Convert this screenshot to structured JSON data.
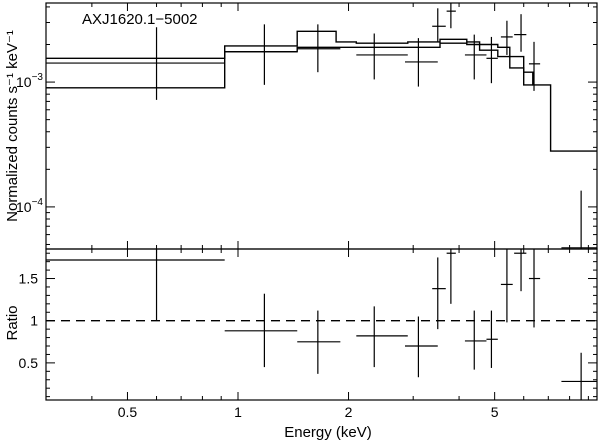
{
  "chart_data": [
    {
      "type": "line",
      "panel": "spectrum",
      "annotation": "AXJ1620.1−5002",
      "ylabel": "Normalized counts s⁻¹ keV⁻¹",
      "xscale": "log",
      "yscale": "log",
      "xlim": [
        0.3,
        9.5
      ],
      "ylim": [
        4.6e-05,
        0.0043
      ],
      "ytick_labels": [
        {
          "value": 0.001,
          "mantissa": "10",
          "exp": "−3"
        },
        {
          "value": 0.0001,
          "mantissa": "10",
          "exp": "−4"
        }
      ],
      "series": [
        {
          "style": "upper step line",
          "edges": [
            0.3,
            0.92,
            1.45,
            1.85,
            2.1,
            2.9,
            3.55,
            4.2,
            4.55,
            5.1,
            5.5,
            6.0,
            6.35,
            7.1,
            9.5
          ],
          "values": [
            0.00155,
            0.00195,
            0.00255,
            0.0021,
            0.00205,
            0.0021,
            0.0022,
            0.0021,
            0.002,
            0.0019,
            0.0016,
            0.0012,
            0.00095,
            0.00028
          ]
        },
        {
          "style": "lower step line",
          "edges": [
            0.3,
            0.92,
            1.45,
            2.1,
            2.9,
            3.55,
            4.2,
            4.55,
            5.1,
            5.5,
            6.0,
            6.35
          ],
          "values": [
            0.0009,
            0.00175,
            0.0019,
            0.0019,
            0.0019,
            0.00205,
            0.002,
            0.0018,
            0.0016,
            0.0013,
            0.00095
          ]
        }
      ],
      "points": [
        {
          "x": 0.6,
          "xlo": 0.3,
          "xhi": 0.92,
          "y": 0.00142,
          "ylo": 0.00072,
          "yhi": 0.00275
        },
        {
          "x": 1.18,
          "xlo": 0.92,
          "xhi": 1.45,
          "y": 0.00175,
          "ylo": 0.00095,
          "yhi": 0.0029
        },
        {
          "x": 1.65,
          "xlo": 1.45,
          "xhi": 1.9,
          "y": 0.00185,
          "ylo": 0.0012,
          "yhi": 0.0029
        },
        {
          "x": 2.35,
          "xlo": 2.1,
          "xhi": 2.9,
          "y": 0.00165,
          "ylo": 0.00105,
          "yhi": 0.00245
        },
        {
          "x": 3.1,
          "xlo": 2.85,
          "xhi": 3.5,
          "y": 0.00145,
          "ylo": 0.00092,
          "yhi": 0.00225
        },
        {
          "x": 3.5,
          "xlo": 3.38,
          "xhi": 3.68,
          "y": 0.0028,
          "ylo": 0.0021,
          "yhi": 0.0039
        },
        {
          "x": 3.8,
          "xlo": 3.7,
          "xhi": 3.92,
          "y": 0.0037,
          "ylo": 0.0027,
          "yhi": 0.0048
        },
        {
          "x": 4.4,
          "xlo": 4.15,
          "xhi": 4.75,
          "y": 0.00165,
          "ylo": 0.00105,
          "yhi": 0.0024
        },
        {
          "x": 4.9,
          "xlo": 4.75,
          "xhi": 5.1,
          "y": 0.00155,
          "ylo": 0.00098,
          "yhi": 0.0023
        },
        {
          "x": 5.4,
          "xlo": 5.2,
          "xhi": 5.6,
          "y": 0.0023,
          "ylo": 0.00165,
          "yhi": 0.0031
        },
        {
          "x": 5.9,
          "xlo": 5.65,
          "xhi": 6.1,
          "y": 0.0024,
          "ylo": 0.00175,
          "yhi": 0.0035
        },
        {
          "x": 6.4,
          "xlo": 6.2,
          "xhi": 6.65,
          "y": 0.0014,
          "ylo": 0.00085,
          "yhi": 0.0021
        },
        {
          "x": 8.6,
          "xlo": 7.6,
          "xhi": 9.5,
          "y": 4.7e-05,
          "ylo": 4.65e-05,
          "yhi": 0.000135
        }
      ]
    },
    {
      "type": "scatter",
      "panel": "ratio",
      "xlabel": "Energy (keV)",
      "ylabel": "Ratio",
      "xscale": "log",
      "xlim": [
        0.3,
        9.5
      ],
      "ylim": [
        0.06,
        1.85
      ],
      "xtick_labels": [
        {
          "value": 0.5,
          "label": "0.5"
        },
        {
          "value": 1,
          "label": "1"
        },
        {
          "value": 2,
          "label": "2"
        },
        {
          "value": 5,
          "label": "5"
        }
      ],
      "ytick_labels": [
        {
          "value": 0.5,
          "label": "0.5"
        },
        {
          "value": 1,
          "label": "1"
        },
        {
          "value": 1.5,
          "label": "1.5"
        }
      ],
      "reference_line": 1,
      "points": [
        {
          "x": 0.6,
          "xlo": 0.3,
          "xhi": 0.92,
          "y": 1.72,
          "ylo": 1.0,
          "yhi": 1.85
        },
        {
          "x": 1.18,
          "xlo": 0.92,
          "xhi": 1.45,
          "y": 0.88,
          "ylo": 0.45,
          "yhi": 1.32
        },
        {
          "x": 1.65,
          "xlo": 1.45,
          "xhi": 1.9,
          "y": 0.75,
          "ylo": 0.37,
          "yhi": 1.12
        },
        {
          "x": 2.35,
          "xlo": 2.1,
          "xhi": 2.9,
          "y": 0.82,
          "ylo": 0.45,
          "yhi": 1.17
        },
        {
          "x": 3.1,
          "xlo": 2.85,
          "xhi": 3.5,
          "y": 0.7,
          "ylo": 0.33,
          "yhi": 1.05
        },
        {
          "x": 3.5,
          "xlo": 3.38,
          "xhi": 3.68,
          "y": 1.38,
          "ylo": 0.9,
          "yhi": 1.75
        },
        {
          "x": 3.8,
          "xlo": 3.7,
          "xhi": 3.92,
          "y": 1.8,
          "ylo": 1.2,
          "yhi": 1.85
        },
        {
          "x": 4.4,
          "xlo": 4.15,
          "xhi": 4.75,
          "y": 0.76,
          "ylo": 0.42,
          "yhi": 1.12
        },
        {
          "x": 4.9,
          "xlo": 4.75,
          "xhi": 5.1,
          "y": 0.78,
          "ylo": 0.44,
          "yhi": 1.12
        },
        {
          "x": 5.4,
          "xlo": 5.2,
          "xhi": 5.6,
          "y": 1.43,
          "ylo": 0.98,
          "yhi": 1.85
        },
        {
          "x": 5.9,
          "xlo": 5.65,
          "xhi": 6.1,
          "y": 1.8,
          "ylo": 1.35,
          "yhi": 1.85
        },
        {
          "x": 6.4,
          "xlo": 6.2,
          "xhi": 6.65,
          "y": 1.5,
          "ylo": 0.92,
          "yhi": 1.85
        },
        {
          "x": 8.6,
          "xlo": 7.6,
          "xhi": 9.5,
          "y": 0.28,
          "ylo": 0.06,
          "yhi": 0.62
        }
      ]
    }
  ]
}
